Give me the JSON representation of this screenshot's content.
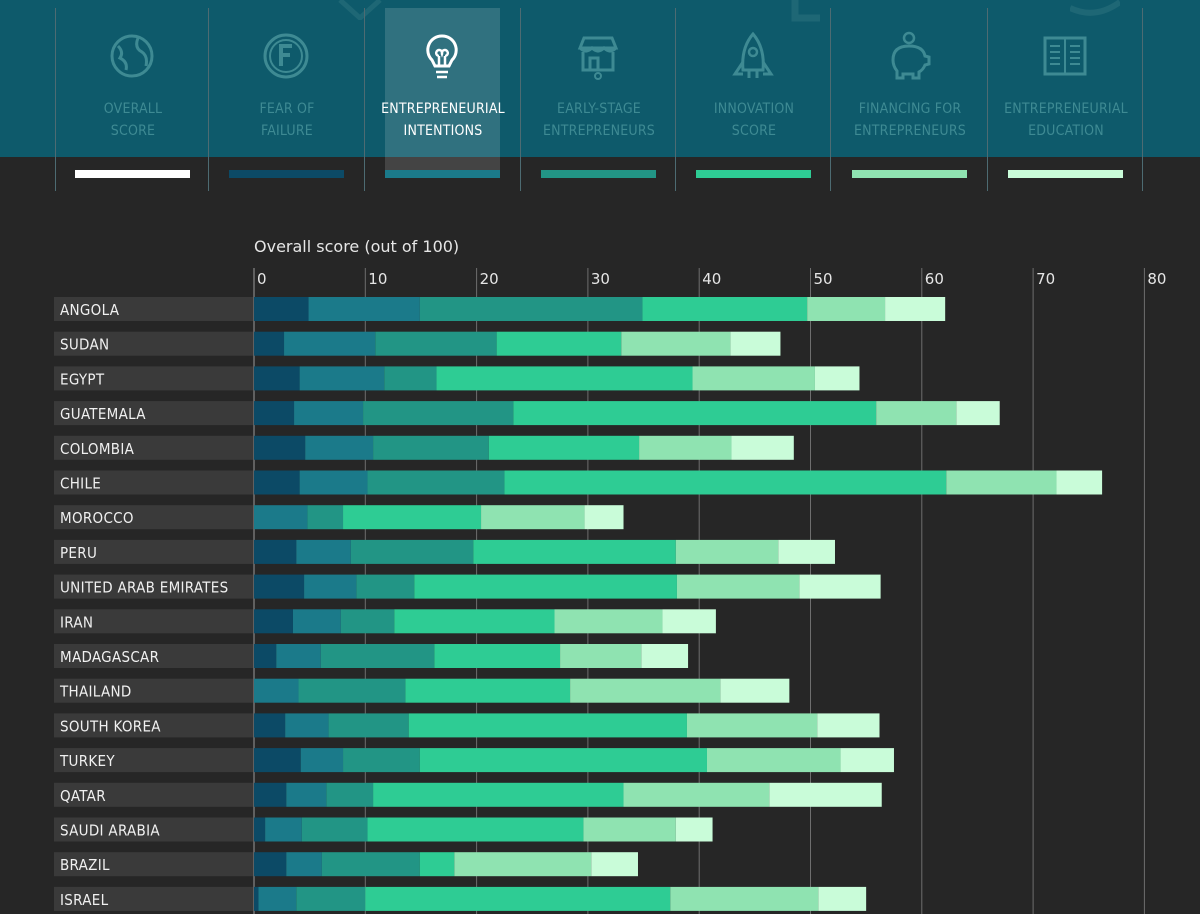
{
  "tabs": [
    {
      "label": "OVERALL\nSCORE",
      "icon": "globe-icon",
      "color": "#ffffff",
      "active": false
    },
    {
      "label": "FEAR OF\nFAILURE",
      "icon": "letter-f-icon",
      "color": "#0c4a66",
      "active": false
    },
    {
      "label": "ENTREPRENEURIAL\nINTENTIONS",
      "icon": "lightbulb-icon",
      "color": "#1b7a8a",
      "active": true
    },
    {
      "label": "EARLY-STAGE\nENTREPRENEURS",
      "icon": "shop-icon",
      "color": "#229585",
      "active": false
    },
    {
      "label": "INNOVATION\nSCORE",
      "icon": "rocket-icon",
      "color": "#2ecc94",
      "active": false
    },
    {
      "label": "FINANCING FOR\nENTREPRENEURS",
      "icon": "piggy-bank-icon",
      "color": "#8fe3b1",
      "active": false
    },
    {
      "label": "ENTREPRENEURIAL\nEDUCATION",
      "icon": "book-icon",
      "color": "#c9fcd9",
      "active": false
    }
  ],
  "chart_data": {
    "type": "bar",
    "orientation": "horizontal",
    "stacked": true,
    "title": "Overall score (out of 100)",
    "xlim": [
      0,
      80
    ],
    "xticks": [
      0,
      10,
      20,
      30,
      40,
      50,
      60,
      70,
      80
    ],
    "categories": [
      "ANGOLA",
      "SUDAN",
      "EGYPT",
      "GUATEMALA",
      "COLOMBIA",
      "CHILE",
      "MOROCCO",
      "PERU",
      "UNITED ARAB EMIRATES",
      "IRAN",
      "MADAGASCAR",
      "THAILAND",
      "SOUTH KOREA",
      "TURKEY",
      "QATAR",
      "SAUDI ARABIA",
      "BRAZIL",
      "ISRAEL"
    ],
    "series": [
      {
        "name": "Fear of failure",
        "color": "#0c4a66",
        "values": [
          4.9,
          2.7,
          4.1,
          3.6,
          4.6,
          4.1,
          0,
          3.8,
          4.5,
          3.5,
          2.0,
          0,
          2.8,
          4.2,
          2.9,
          1.0,
          2.9,
          0.4
        ]
      },
      {
        "name": "Entrepreneurial intentions",
        "color": "#1b7a8a",
        "values": [
          10.0,
          8.2,
          7.6,
          6.2,
          6.1,
          6.1,
          4.8,
          4.9,
          4.7,
          4.3,
          4.0,
          4.0,
          3.9,
          3.8,
          3.6,
          3.3,
          3.2,
          3.4
        ]
      },
      {
        "name": "Early-stage entrepreneurs",
        "color": "#229585",
        "values": [
          20.0,
          10.9,
          4.7,
          13.5,
          10.4,
          12.3,
          3.2,
          11.0,
          5.2,
          4.8,
          10.2,
          9.6,
          7.2,
          6.9,
          4.2,
          5.9,
          8.8,
          6.2
        ]
      },
      {
        "name": "Innovation score",
        "color": "#2ecc94",
        "values": [
          14.8,
          11.2,
          23.0,
          32.6,
          13.5,
          39.7,
          12.4,
          18.2,
          23.6,
          14.4,
          11.3,
          14.8,
          25.0,
          25.8,
          22.5,
          19.4,
          3.1,
          27.4
        ]
      },
      {
        "name": "Financing for entrepreneurs",
        "color": "#8fe3b1",
        "values": [
          7.0,
          9.8,
          11.0,
          7.2,
          8.3,
          9.9,
          9.3,
          9.2,
          11.0,
          9.7,
          7.3,
          13.5,
          11.7,
          12.0,
          13.1,
          8.3,
          12.3,
          13.3
        ]
      },
      {
        "name": "Entrepreneurial education",
        "color": "#c9fcd9",
        "values": [
          5.4,
          4.5,
          4.0,
          3.9,
          5.6,
          4.1,
          3.5,
          5.1,
          7.3,
          4.8,
          4.2,
          6.2,
          5.6,
          4.8,
          10.1,
          3.3,
          4.2,
          4.3
        ]
      }
    ]
  }
}
